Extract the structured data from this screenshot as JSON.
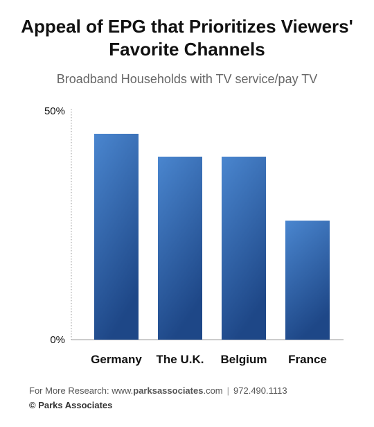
{
  "chart_data": {
    "type": "bar",
    "title_lines": [
      "Appeal of EPG that Prioritizes Viewers'",
      "Favorite Channels"
    ],
    "subtitle": "Broadband Households with TV service/pay TV",
    "categories": [
      "Germany",
      "The U.K.",
      "Belgium",
      "France"
    ],
    "values": [
      45,
      40,
      40,
      26
    ],
    "ylim": [
      0,
      50
    ],
    "y_tick_labels": [
      "50%",
      "0%"
    ],
    "grid": false,
    "bar_color": "#3b6cb0"
  },
  "footer": {
    "research_prefix": "For More Research: www.",
    "site_bold": "parksassociates",
    "site_suffix": ".com",
    "separator": "|",
    "phone": "972.490.1113",
    "copyright": "© Parks Associates"
  }
}
